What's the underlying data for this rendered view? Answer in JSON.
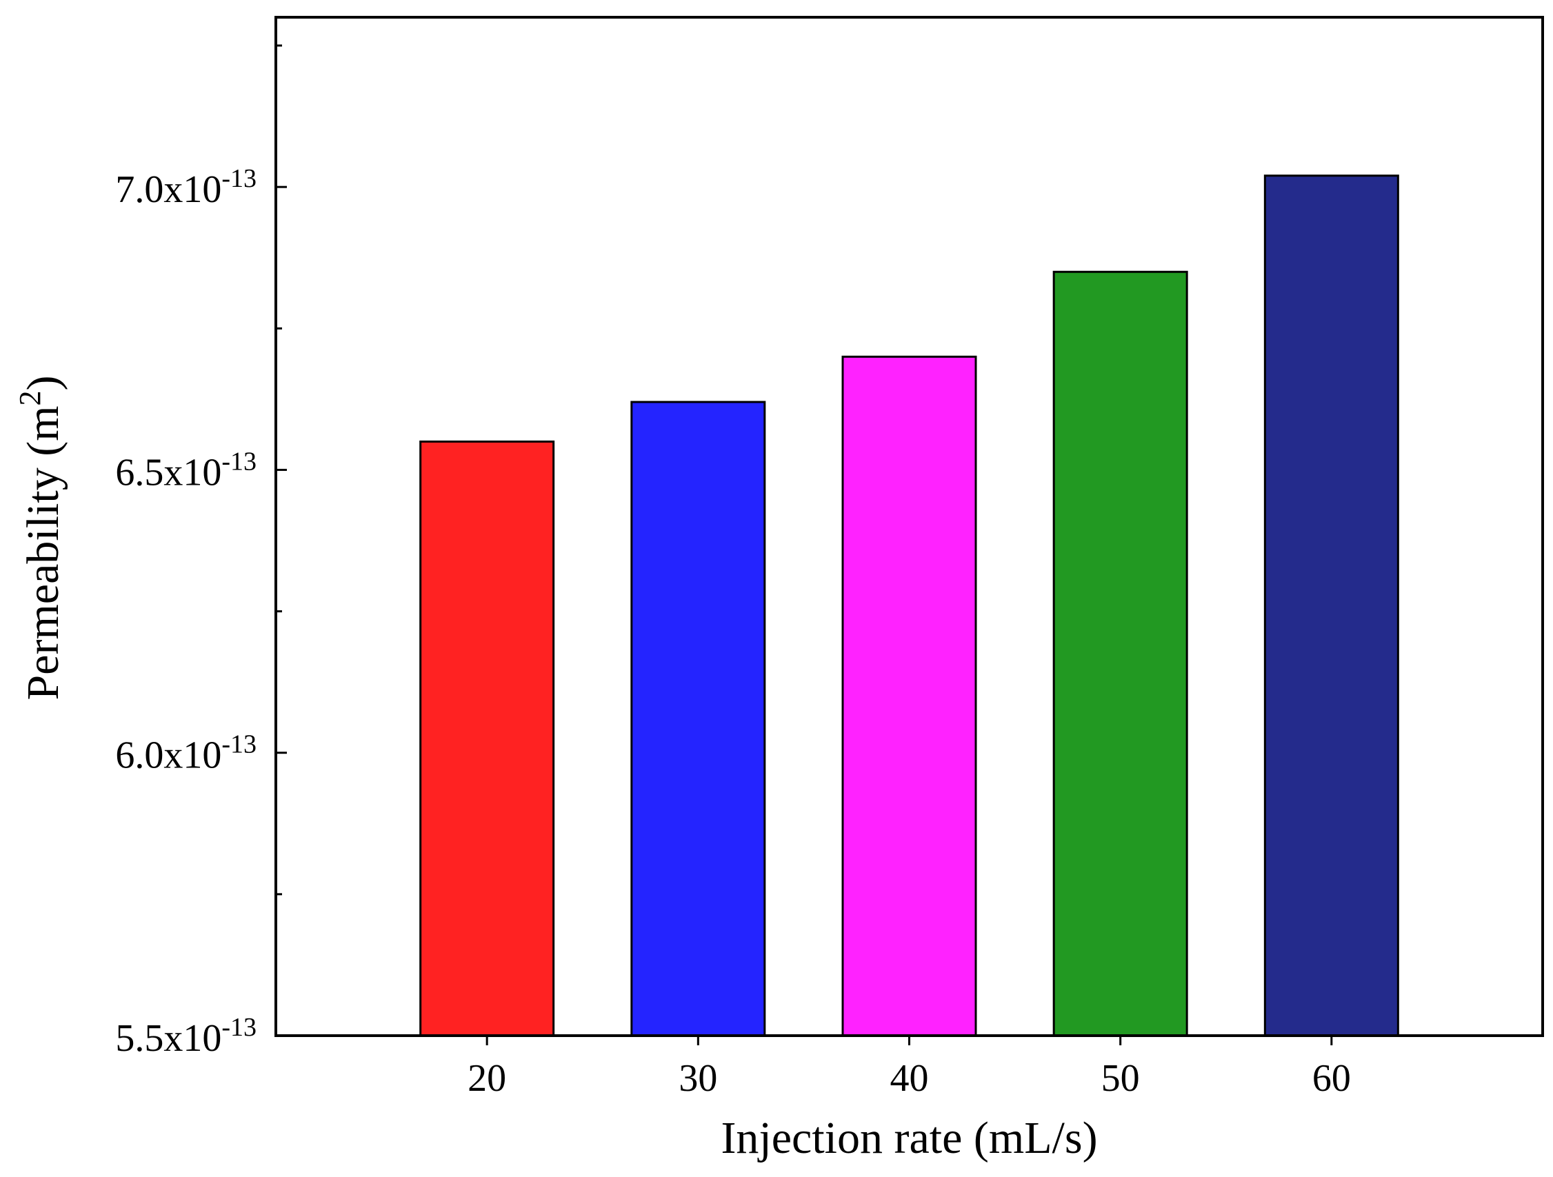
{
  "chart_data": {
    "type": "bar",
    "categories": [
      "20",
      "30",
      "40",
      "50",
      "60"
    ],
    "values": [
      6.55e-13,
      6.62e-13,
      6.7e-13,
      6.85e-13,
      7.02e-13
    ],
    "colors": [
      "#ff2222",
      "#2424ff",
      "#ff22ff",
      "#229922",
      "#242b8c"
    ],
    "xlabel": "Injection rate (mL/s)",
    "ylabel": {
      "text": "Permeability (m",
      "superscript": "2",
      "close": ")"
    },
    "ylim": [
      5.5e-13,
      7.3e-13
    ],
    "y_ticks": [
      {
        "value": 5.5e-13,
        "mantissa": "5.5x10",
        "exponent": "-13"
      },
      {
        "value": 6e-13,
        "mantissa": "6.0x10",
        "exponent": "-13"
      },
      {
        "value": 6.5e-13,
        "mantissa": "6.5x10",
        "exponent": "-13"
      },
      {
        "value": 7e-13,
        "mantissa": "7.0x10",
        "exponent": "-13"
      }
    ],
    "y_minor_ticks": [
      5.75e-13,
      6.25e-13,
      6.75e-13,
      7.25e-13
    ],
    "grid": false,
    "legend": "none"
  }
}
